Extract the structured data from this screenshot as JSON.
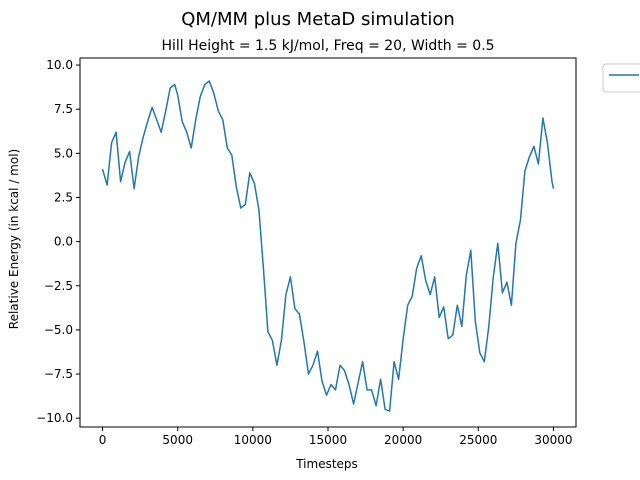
{
  "chart_data": {
    "type": "line",
    "title": "QM/MM plus MetaD simulation",
    "subtitle": "Hill Height = 1.5 kJ/mol, Freq = 20, Width = 0.5",
    "xlabel": "Timesteps",
    "ylabel": "Relative Energy (in kcal / mol)",
    "xlim": [
      -1500,
      31500
    ],
    "ylim": [
      -10.5,
      10.4
    ],
    "xticks": [
      0,
      5000,
      10000,
      15000,
      20000,
      25000,
      30000
    ],
    "xtick_labels": [
      "0",
      "5000",
      "10000",
      "15000",
      "20000",
      "25000",
      "30000"
    ],
    "yticks": [
      10.0,
      7.5,
      5.0,
      2.5,
      0.0,
      -2.5,
      -5.0,
      -7.5,
      -10.0
    ],
    "ytick_labels": [
      "10.0",
      "7.5",
      "5.0",
      "2.5",
      "0.0",
      "−2.5",
      "−5.0",
      "−7.5",
      "−10.0"
    ],
    "grid": false,
    "legend": {
      "placement": "outside-top-right",
      "entries": [
        ""
      ]
    },
    "colors": {
      "series": "#1f77b4"
    },
    "series": [
      {
        "x": [
          0,
          300,
          600,
          900,
          1200,
          1500,
          1800,
          2100,
          2400,
          2700,
          3000,
          3300,
          3600,
          3900,
          4200,
          4500,
          4800,
          5000,
          5300,
          5600,
          5900,
          6200,
          6500,
          6800,
          7100,
          7400,
          7700,
          8000,
          8300,
          8600,
          8900,
          9200,
          9500,
          9800,
          10100,
          10400,
          10700,
          11000,
          11300,
          11600,
          11900,
          12200,
          12500,
          12800,
          13100,
          13400,
          13700,
          14000,
          14300,
          14600,
          14900,
          15200,
          15500,
          15800,
          16100,
          16400,
          16700,
          17000,
          17300,
          17600,
          17900,
          18200,
          18500,
          18800,
          19100,
          19400,
          19700,
          20000,
          20300,
          20600,
          20900,
          21200,
          21500,
          21800,
          22100,
          22400,
          22700,
          23000,
          23300,
          23600,
          23900,
          24200,
          24500,
          24800,
          25100,
          25400,
          25700,
          26000,
          26300,
          26600,
          26900,
          27200,
          27500,
          27800,
          28100,
          28400,
          28700,
          29000,
          29300,
          29600,
          29900,
          30000
        ],
        "y": [
          4.1,
          3.2,
          5.6,
          6.2,
          3.4,
          4.5,
          5.1,
          3.0,
          4.8,
          5.9,
          6.8,
          7.6,
          6.9,
          6.2,
          7.4,
          8.7,
          8.9,
          8.3,
          6.8,
          6.2,
          5.3,
          6.9,
          8.2,
          8.9,
          9.1,
          8.4,
          7.4,
          6.9,
          5.3,
          4.9,
          3.1,
          1.9,
          2.1,
          3.9,
          3.3,
          1.8,
          -1.5,
          -5.1,
          -5.6,
          -7.0,
          -5.6,
          -3.0,
          -2.0,
          -3.8,
          -4.1,
          -5.7,
          -7.5,
          -7.0,
          -6.2,
          -7.9,
          -8.7,
          -8.1,
          -8.4,
          -7.0,
          -7.3,
          -8.1,
          -9.2,
          -8.0,
          -6.8,
          -8.4,
          -8.4,
          -9.3,
          -7.8,
          -9.5,
          -9.6,
          -6.8,
          -7.8,
          -5.5,
          -3.6,
          -3.1,
          -1.5,
          -0.8,
          -2.2,
          -3.0,
          -2.0,
          -4.3,
          -3.7,
          -5.5,
          -5.3,
          -3.6,
          -4.8,
          -1.9,
          -0.5,
          -4.5,
          -6.3,
          -6.8,
          -4.8,
          -2.0,
          -0.1,
          -2.9,
          -2.3,
          -3.6,
          -0.1,
          1.2,
          4.0,
          4.8,
          5.4,
          4.4,
          7.0,
          5.6,
          3.4,
          3.0
        ]
      }
    ]
  }
}
